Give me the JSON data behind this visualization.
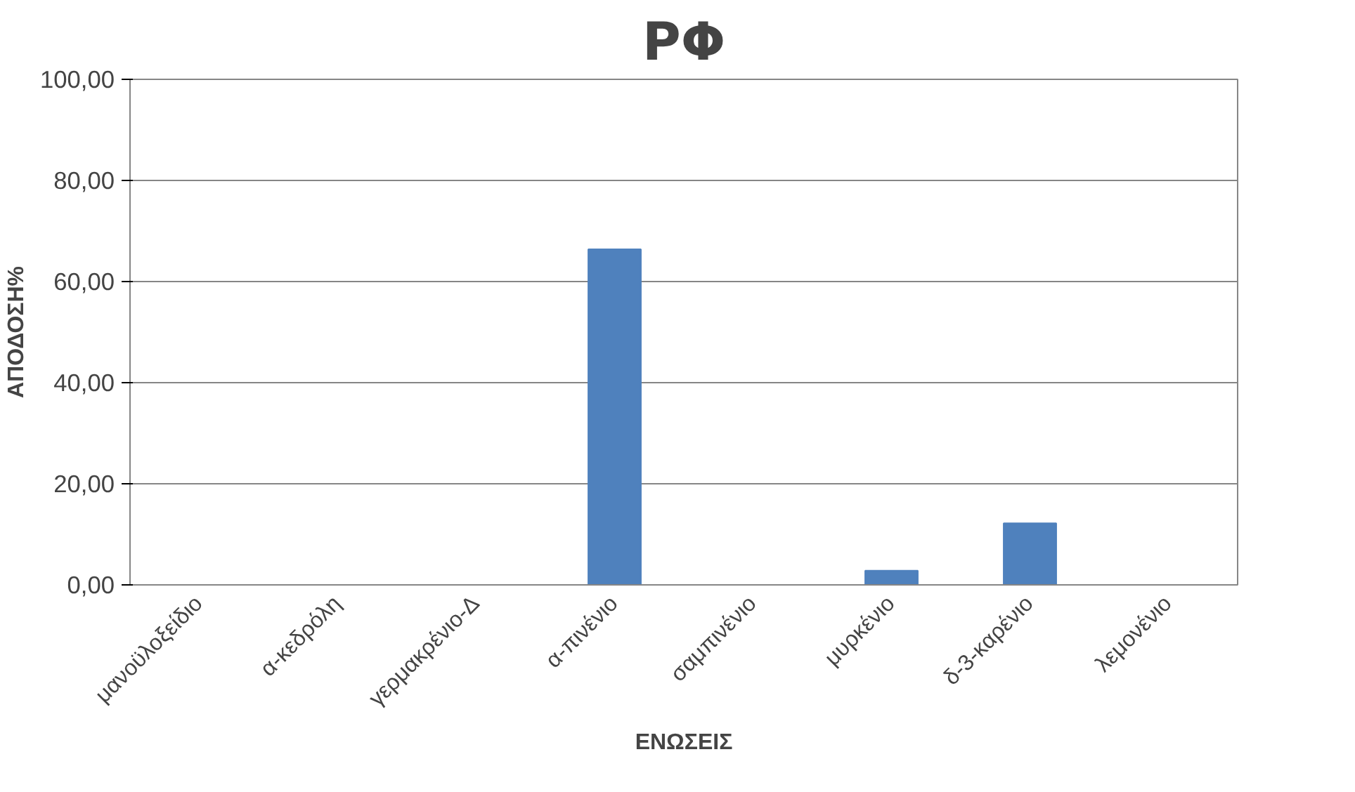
{
  "chart_data": {
    "type": "bar",
    "title": "ΡΦ",
    "xlabel": "ΕΝΩΣΕΙΣ",
    "ylabel": "ΑΠΟΔΟΣΗ%",
    "categories": [
      "μανοϋλοξείδιο",
      "α-κεδρόλη",
      "γερμακρένιο-Δ",
      "α-πινένιο",
      "σαμπινένιο",
      "μυρκένιο",
      "δ-3-καρένιο",
      "λεμονένιο"
    ],
    "values": [
      0,
      0,
      0,
      66.4,
      0,
      2.8,
      12.2,
      0
    ],
    "color": "#4f81bd",
    "ylim": [
      0,
      100
    ],
    "yticks": [
      {
        "value": 0,
        "label": "0,00"
      },
      {
        "value": 20,
        "label": "20,00"
      },
      {
        "value": 40,
        "label": "40,00"
      },
      {
        "value": 60,
        "label": "60,00"
      },
      {
        "value": 80,
        "label": "80,00"
      },
      {
        "value": 100,
        "label": "100,00"
      }
    ],
    "grid": "y"
  }
}
